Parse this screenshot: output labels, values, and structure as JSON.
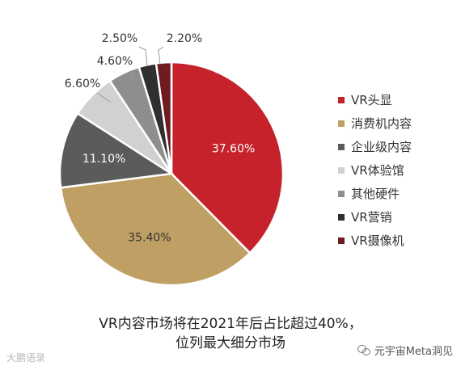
{
  "chart_data": {
    "type": "pie",
    "slices": [
      {
        "label": "VR头显",
        "value": 37.6,
        "display": "37.60%",
        "color": "#c5222b",
        "text_color": "#ffffff"
      },
      {
        "label": "消费机内容",
        "value": 35.4,
        "display": "35.40%",
        "color": "#c09f65",
        "text_color": "#333333"
      },
      {
        "label": "企业级内容",
        "value": 11.1,
        "display": "11.10%",
        "color": "#5b5b5b",
        "text_color": "#ffffff"
      },
      {
        "label": "VR体验馆",
        "value": 6.6,
        "display": "6.60%",
        "color": "#d1d1d1",
        "text_color": "#333333"
      },
      {
        "label": "其他硬件",
        "value": 4.6,
        "display": "4.60%",
        "color": "#8e8e8e",
        "text_color": "#333333"
      },
      {
        "label": "VR营销",
        "value": 2.5,
        "display": "2.50%",
        "color": "#2f2f2f",
        "text_color": "#333333"
      },
      {
        "label": "VR摄像机",
        "value": 2.2,
        "display": "2.20%",
        "color": "#6e1b22",
        "text_color": "#333333"
      }
    ],
    "legend_position": "right"
  },
  "caption": {
    "line1": "VR内容市场将在2021年后占比超过40%，",
    "line2": "位列最大细分市场"
  },
  "watermarks": {
    "left": "大鹏语录",
    "right": "元宇宙Meta洞见"
  },
  "icons": {
    "wechat": "wechat-icon"
  }
}
